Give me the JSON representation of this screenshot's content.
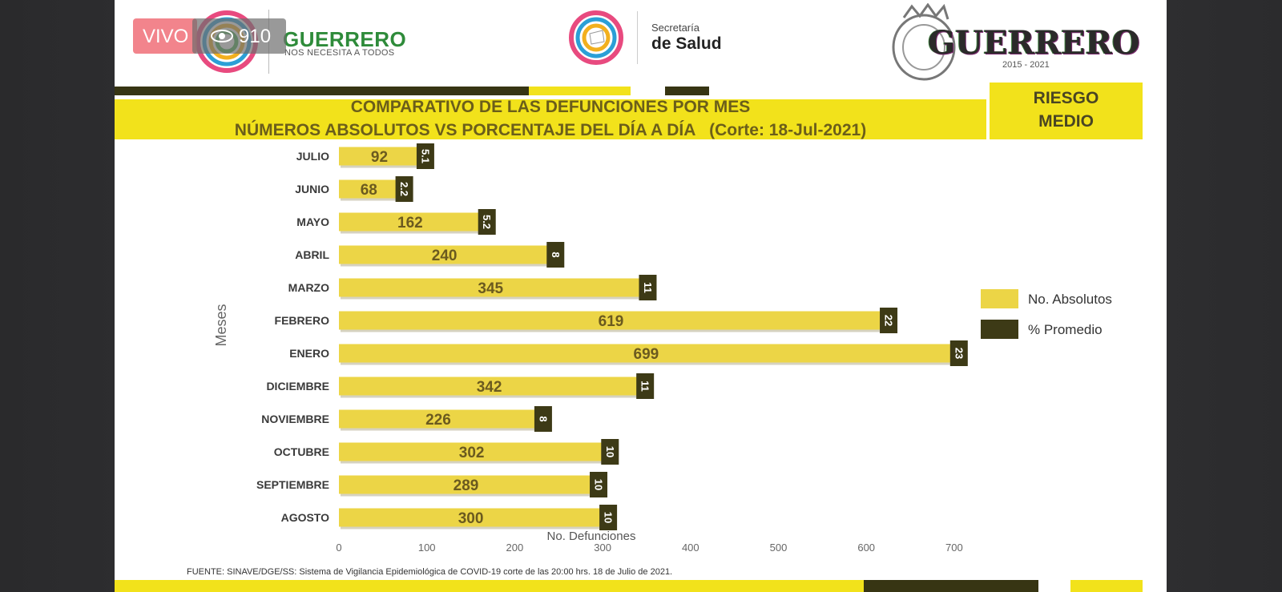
{
  "header": {
    "brand_main": "GUERRERO",
    "brand_sub": "NOS NECESITA A TODOS",
    "secretaria_top": "Secretaría",
    "secretaria_bottom": "de Salud",
    "state_word": "GUERRERO",
    "state_years": "2015 - 2021"
  },
  "title": {
    "line1": "COMPARATIVO DE LAS DEFUNCIONES POR MES",
    "line2": "NÚMEROS ABSOLUTOS VS PORCENTAJE DEL DÍA A DÍA   (Corte: 18-Jul-2021)"
  },
  "risk": {
    "line1": "RIESGO",
    "line2": "MEDIO"
  },
  "live": {
    "label": "VIVO",
    "views": "910"
  },
  "source": "FUENTE:  SINAVE/DGE/SS:  Sistema de Vigilancia Epidemiológica de COVID-19 corte de las 20:00 hrs. 18 de Julio de 2021.",
  "colors": {
    "absolutos": "#ecd546",
    "promedio": "#3d3a16",
    "band_yellow": "#f2e21b",
    "dark_olive": "#373513"
  },
  "chart_data": {
    "type": "bar",
    "orientation": "horizontal",
    "categories": [
      "JULIO",
      "JUNIO",
      "MAYO",
      "ABRIL",
      "MARZO",
      "FEBRERO",
      "ENERO",
      "DICIEMBRE",
      "NOVIEMBRE",
      "OCTUBRE",
      "SEPTIEMBRE",
      "AGOSTO"
    ],
    "series": [
      {
        "name": "No. Absolutos",
        "values": [
          92,
          68,
          162,
          240,
          345,
          619,
          699,
          342,
          226,
          302,
          289,
          300
        ]
      },
      {
        "name": "% Promedio",
        "labels": [
          "5.1",
          "2.2",
          "5.2",
          "8",
          "11",
          "22",
          "23",
          "11",
          "8",
          "10",
          "10",
          "10"
        ]
      }
    ],
    "xlabel": "No. Defunciones",
    "ylabel": "Meses",
    "xlim": [
      0,
      700
    ],
    "xticks": [
      0,
      100,
      200,
      300,
      400,
      500,
      600,
      700
    ],
    "legend_position": "right",
    "grid": false
  }
}
